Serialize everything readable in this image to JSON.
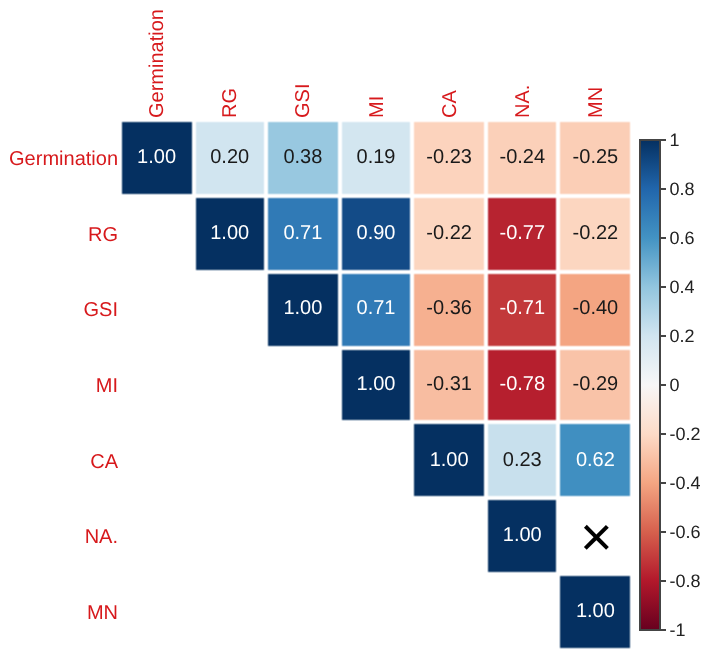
{
  "chart_data": {
    "type": "heatmap",
    "categories": [
      "Germination",
      "RG",
      "GSI",
      "MI",
      "CA",
      "NA.",
      "MN"
    ],
    "y_categories": [
      "Germination",
      "RG",
      "GSI",
      "MI",
      "CA",
      "NA.",
      "MN"
    ],
    "cells": [
      [
        1.0,
        0.2,
        0.38,
        0.19,
        -0.23,
        -0.24,
        -0.25
      ],
      [
        null,
        1.0,
        0.71,
        0.9,
        -0.22,
        -0.77,
        -0.22
      ],
      [
        null,
        null,
        1.0,
        0.71,
        -0.36,
        -0.71,
        -0.4
      ],
      [
        null,
        null,
        null,
        1.0,
        -0.31,
        -0.78,
        -0.29
      ],
      [
        null,
        null,
        null,
        null,
        1.0,
        0.23,
        0.62
      ],
      [
        null,
        null,
        null,
        null,
        null,
        1.0,
        null
      ],
      [
        null,
        null,
        null,
        null,
        null,
        null,
        1.0
      ]
    ],
    "cell_labels": [
      [
        "1.00",
        "0.20",
        "0.38",
        "0.19",
        "-0.23",
        "-0.24",
        "-0.25"
      ],
      [
        null,
        "1.00",
        "0.71",
        "0.90",
        "-0.22",
        "-0.77",
        "-0.22"
      ],
      [
        null,
        null,
        "1.00",
        "0.71",
        "-0.36",
        "-0.71",
        "-0.40"
      ],
      [
        null,
        null,
        null,
        "1.00",
        "-0.31",
        "-0.78",
        "-0.29"
      ],
      [
        null,
        null,
        null,
        null,
        "1.00",
        "0.23",
        "0.62"
      ],
      [
        null,
        null,
        null,
        null,
        null,
        "1.00",
        null
      ],
      [
        null,
        null,
        null,
        null,
        null,
        null,
        "1.00"
      ]
    ],
    "annotations": [
      "×"
    ],
    "clim": [
      -1,
      1
    ],
    "cticks": [
      -1,
      -0.8,
      -0.6,
      -0.4,
      -0.2,
      0,
      0.2,
      0.4,
      0.6,
      0.8,
      1
    ]
  }
}
